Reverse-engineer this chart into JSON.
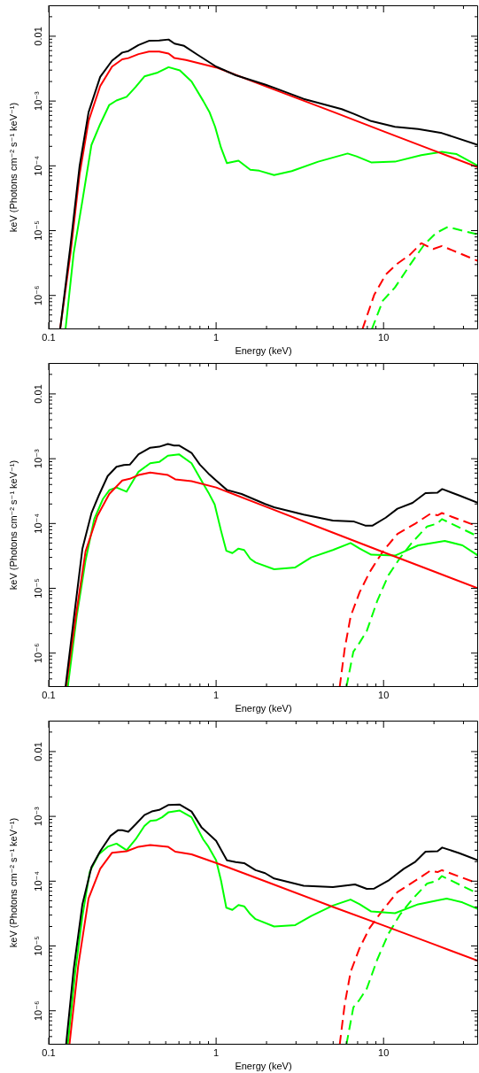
{
  "chart_data": [
    {
      "type": "line",
      "xlabel": "Energy (keV)",
      "ylabel": "keV (Photons cm⁻² s⁻¹ keV⁻¹)",
      "log": "xy",
      "marker": "none",
      "xlim": [
        0.1,
        36.7
      ],
      "ylim": [
        3e-07,
        0.03
      ],
      "xticks": [
        0.1,
        {
          "value": 0.2,
          "label": null
        },
        {
          "value": 0.3,
          "label": null
        },
        {
          "value": 0.4,
          "label": null
        },
        {
          "value": 0.5,
          "label": null
        },
        {
          "value": 0.6,
          "label": null
        },
        {
          "value": 0.7,
          "label": null
        },
        {
          "value": 0.8,
          "label": null
        },
        {
          "value": 0.9,
          "label": null
        },
        1,
        {
          "value": 2,
          "label": null
        },
        {
          "value": 3,
          "label": null
        },
        {
          "value": 4,
          "label": null
        },
        {
          "value": 5,
          "label": null
        },
        {
          "value": 6,
          "label": null
        },
        {
          "value": 7,
          "label": null
        },
        {
          "value": 8,
          "label": null
        },
        {
          "value": 9,
          "label": null
        },
        10,
        {
          "value": 20,
          "label": null
        },
        {
          "value": 30,
          "label": null
        }
      ],
      "yticks": [
        {
          "value": 4e-07,
          "label": null
        },
        {
          "value": 5e-07,
          "label": null
        },
        {
          "value": 6e-07,
          "label": null
        },
        {
          "value": 7e-07,
          "label": null
        },
        {
          "value": 8e-07,
          "label": null
        },
        {
          "value": 9e-07,
          "label": null
        },
        {
          "value": 1e-06,
          "label": "10⁻⁶"
        },
        {
          "value": 2e-06,
          "label": null
        },
        {
          "value": 3e-06,
          "label": null
        },
        {
          "value": 4e-06,
          "label": null
        },
        {
          "value": 5e-06,
          "label": null
        },
        {
          "value": 6e-06,
          "label": null
        },
        {
          "value": 7e-06,
          "label": null
        },
        {
          "value": 8e-06,
          "label": null
        },
        {
          "value": 9e-06,
          "label": null
        },
        {
          "value": 1e-05,
          "label": "10⁻⁵"
        },
        {
          "value": 2e-05,
          "label": null
        },
        {
          "value": 3e-05,
          "label": null
        },
        {
          "value": 4e-05,
          "label": null
        },
        {
          "value": 5e-05,
          "label": null
        },
        {
          "value": 6e-05,
          "label": null
        },
        {
          "value": 7e-05,
          "label": null
        },
        {
          "value": 8e-05,
          "label": null
        },
        {
          "value": 9e-05,
          "label": null
        },
        {
          "value": 0.0001,
          "label": "10⁻⁴"
        },
        {
          "value": 0.0002,
          "label": null
        },
        {
          "value": 0.0003,
          "label": null
        },
        {
          "value": 0.0004,
          "label": null
        },
        {
          "value": 0.0005,
          "label": null
        },
        {
          "value": 0.0006,
          "label": null
        },
        {
          "value": 0.0007,
          "label": null
        },
        {
          "value": 0.0008,
          "label": null
        },
        {
          "value": 0.0009,
          "label": null
        },
        {
          "value": 0.001,
          "label": "10⁻³"
        },
        {
          "value": 0.002,
          "label": null
        },
        {
          "value": 0.003,
          "label": null
        },
        {
          "value": 0.004,
          "label": null
        },
        {
          "value": 0.005,
          "label": null
        },
        {
          "value": 0.006,
          "label": null
        },
        {
          "value": 0.007,
          "label": null
        },
        {
          "value": 0.008,
          "label": null
        },
        {
          "value": 0.009,
          "label": null
        },
        {
          "value": 0.01,
          "label": "0.01"
        },
        {
          "value": 0.02,
          "label": null
        }
      ],
      "series": [
        {
          "color": "#000000",
          "line_style": "solid",
          "x": [
            0.117,
            0.135,
            0.153,
            0.173,
            0.203,
            0.239,
            0.275,
            0.299,
            0.344,
            0.397,
            0.457,
            0.52,
            0.564,
            0.644,
            0.773,
            1.0,
            1.31,
            1.96,
            2.22,
            3.33,
            5.62,
            6.6,
            8.44,
            11.7,
            16.1,
            22.3,
            36.7
          ],
          "values": [
            3e-07,
            6e-06,
            0.0001,
            0.00067,
            0.00236,
            0.0042,
            0.0056,
            0.0059,
            0.0073,
            0.0085,
            0.0086,
            0.0089,
            0.0077,
            0.0071,
            0.0052,
            0.0034,
            0.0025,
            0.0018,
            0.0016,
            0.00108,
            0.00075,
            0.00064,
            0.00049,
            0.0004,
            0.00037,
            0.00032,
            0.00021
          ]
        },
        {
          "color": "#ff0000",
          "line_style": "solid",
          "x": [
            0.117,
            0.135,
            0.153,
            0.173,
            0.203,
            0.239,
            0.275,
            0.299,
            0.344,
            0.397,
            0.457,
            0.52,
            0.564,
            0.66,
            1.0,
            2,
            5,
            10,
            20,
            36.7
          ],
          "values": [
            3e-07,
            4.5e-06,
            7.5e-05,
            0.00049,
            0.0017,
            0.0034,
            0.0044,
            0.0046,
            0.0053,
            0.0058,
            0.0058,
            0.0054,
            0.0046,
            0.0043,
            0.0033,
            0.00167,
            0.00068,
            0.00034,
            0.000172,
            9.5e-05
          ]
        },
        {
          "color": "#00ff00",
          "line_style": "solid",
          "x": [
            0.126,
            0.141,
            0.159,
            0.18,
            0.203,
            0.23,
            0.254,
            0.292,
            0.33,
            0.373,
            0.448,
            0.52,
            0.607,
            0.713,
            0.838,
            0.916,
            0.986,
            1.07,
            1.16,
            1.36,
            1.6,
            1.81,
            2.22,
            2.83,
            4.07,
            6.1,
            6.9,
            8.43,
            11.7,
            16.8,
            22.3,
            27.3,
            36.7
          ],
          "values": [
            3e-07,
            4.5e-06,
            2.9e-05,
            0.00021,
            0.00044,
            0.00087,
            0.00102,
            0.00116,
            0.00164,
            0.0024,
            0.00275,
            0.00333,
            0.00297,
            0.002,
            0.001,
            0.00066,
            0.0004,
            0.00019,
            0.00011,
            0.00012,
            8.7e-05,
            8.4e-05,
            7.2e-05,
            8.3e-05,
            0.000116,
            0.000155,
            0.00014,
            0.000113,
            0.000116,
            0.000146,
            0.000164,
            0.000152,
            0.0001
          ]
        },
        {
          "color": "#ff0000",
          "line_style": "dashed",
          "x": [
            7.47,
            8.79,
            10.3,
            12.1,
            14.3,
            16.8,
            19.8,
            22.3,
            36.7
          ],
          "values": [
            3e-07,
            1.02e-06,
            2.1e-06,
            3.1e-06,
            4.2e-06,
            6.4e-06,
            5.2e-06,
            5.8e-06,
            3.4e-06
          ]
        },
        {
          "color": "#00ff00",
          "line_style": "dashed",
          "x": [
            8.5,
            9.9,
            11.7,
            14.3,
            17.5,
            20.6,
            24.2,
            36.7
          ],
          "values": [
            3e-07,
            8.3e-07,
            1.33e-06,
            2.9e-06,
            6.1e-06,
            9.2e-06,
            1.14e-05,
            8.7e-06
          ]
        }
      ]
    },
    {
      "type": "line",
      "xlabel": "Energy (keV)",
      "ylabel": "keV (Photons cm⁻² s⁻¹ keV⁻¹)",
      "log": "xy",
      "marker": "none",
      "xlim": [
        0.1,
        36.7
      ],
      "ylim": [
        3e-07,
        0.03
      ],
      "xticks": [
        0.1,
        {
          "value": 0.2,
          "label": null
        },
        {
          "value": 0.3,
          "label": null
        },
        {
          "value": 0.4,
          "label": null
        },
        {
          "value": 0.5,
          "label": null
        },
        {
          "value": 0.6,
          "label": null
        },
        {
          "value": 0.7,
          "label": null
        },
        {
          "value": 0.8,
          "label": null
        },
        {
          "value": 0.9,
          "label": null
        },
        1,
        {
          "value": 2,
          "label": null
        },
        {
          "value": 3,
          "label": null
        },
        {
          "value": 4,
          "label": null
        },
        {
          "value": 5,
          "label": null
        },
        {
          "value": 6,
          "label": null
        },
        {
          "value": 7,
          "label": null
        },
        {
          "value": 8,
          "label": null
        },
        {
          "value": 9,
          "label": null
        },
        10,
        {
          "value": 20,
          "label": null
        },
        {
          "value": 30,
          "label": null
        }
      ],
      "yticks": [
        {
          "value": 4e-07,
          "label": null
        },
        {
          "value": 5e-07,
          "label": null
        },
        {
          "value": 6e-07,
          "label": null
        },
        {
          "value": 7e-07,
          "label": null
        },
        {
          "value": 8e-07,
          "label": null
        },
        {
          "value": 9e-07,
          "label": null
        },
        {
          "value": 1e-06,
          "label": "10⁻⁶"
        },
        {
          "value": 2e-06,
          "label": null
        },
        {
          "value": 3e-06,
          "label": null
        },
        {
          "value": 4e-06,
          "label": null
        },
        {
          "value": 5e-06,
          "label": null
        },
        {
          "value": 6e-06,
          "label": null
        },
        {
          "value": 7e-06,
          "label": null
        },
        {
          "value": 8e-06,
          "label": null
        },
        {
          "value": 9e-06,
          "label": null
        },
        {
          "value": 1e-05,
          "label": "10⁻⁵"
        },
        {
          "value": 2e-05,
          "label": null
        },
        {
          "value": 3e-05,
          "label": null
        },
        {
          "value": 4e-05,
          "label": null
        },
        {
          "value": 5e-05,
          "label": null
        },
        {
          "value": 6e-05,
          "label": null
        },
        {
          "value": 7e-05,
          "label": null
        },
        {
          "value": 8e-05,
          "label": null
        },
        {
          "value": 9e-05,
          "label": null
        },
        {
          "value": 0.0001,
          "label": "10⁻⁴"
        },
        {
          "value": 0.0002,
          "label": null
        },
        {
          "value": 0.0003,
          "label": null
        },
        {
          "value": 0.0004,
          "label": null
        },
        {
          "value": 0.0005,
          "label": null
        },
        {
          "value": 0.0006,
          "label": null
        },
        {
          "value": 0.0007,
          "label": null
        },
        {
          "value": 0.0008,
          "label": null
        },
        {
          "value": 0.0009,
          "label": null
        },
        {
          "value": 0.001,
          "label": "10⁻³"
        },
        {
          "value": 0.002,
          "label": null
        },
        {
          "value": 0.003,
          "label": null
        },
        {
          "value": 0.004,
          "label": null
        },
        {
          "value": 0.005,
          "label": null
        },
        {
          "value": 0.006,
          "label": null
        },
        {
          "value": 0.007,
          "label": null
        },
        {
          "value": 0.008,
          "label": null
        },
        {
          "value": 0.009,
          "label": null
        },
        {
          "value": 0.01,
          "label": "0.01"
        },
        {
          "value": 0.02,
          "label": null
        }
      ],
      "series": [
        {
          "color": "#000000",
          "line_style": "solid",
          "x": [
            0.126,
            0.141,
            0.159,
            0.18,
            0.199,
            0.225,
            0.254,
            0.281,
            0.305,
            0.344,
            0.404,
            0.457,
            0.515,
            0.56,
            0.6,
            0.713,
            0.8,
            0.9,
            1.0,
            1.16,
            1.42,
            1.96,
            2.22,
            3.33,
            4.98,
            6.6,
            7.77,
            8.6,
            10.3,
            12.1,
            14.9,
            17.8,
            21.0,
            22.4,
            28.4,
            36.7
          ],
          "values": [
            3e-07,
            3.3e-06,
            4.1e-05,
            0.000144,
            0.00027,
            0.00054,
            0.00075,
            0.0008,
            0.00081,
            0.00117,
            0.00148,
            0.00153,
            0.00169,
            0.0016,
            0.0016,
            0.00123,
            0.00081,
            0.00059,
            0.00046,
            0.00033,
            0.000285,
            0.0002,
            0.000178,
            0.000137,
            0.000111,
            0.000108,
            9.3e-05,
            9.3e-05,
            0.000123,
            0.000169,
            0.000208,
            0.000294,
            0.0003,
            0.00034,
            0.00027,
            0.000208
          ]
        },
        {
          "color": "#ff0000",
          "line_style": "solid",
          "x": [
            0.127,
            0.147,
            0.166,
            0.195,
            0.23,
            0.275,
            0.305,
            0.344,
            0.404,
            0.515,
            0.57,
            0.713,
            1.0,
            2,
            5,
            10,
            20,
            36.7
          ],
          "values": [
            3e-07,
            4.6e-06,
            3.7e-05,
            0.00013,
            0.000285,
            0.00046,
            0.00049,
            0.00056,
            0.00061,
            0.00056,
            0.00048,
            0.00045,
            0.00036,
            0.00018,
            7.2e-05,
            3.6e-05,
            1.82e-05,
            1e-05
          ]
        },
        {
          "color": "#00ff00",
          "line_style": "solid",
          "x": [
            0.13,
            0.147,
            0.166,
            0.187,
            0.211,
            0.231,
            0.254,
            0.292,
            0.344,
            0.404,
            0.457,
            0.515,
            0.6,
            0.713,
            0.838,
            0.9,
            0.98,
            1.07,
            1.15,
            1.25,
            1.36,
            1.47,
            1.6,
            1.72,
            2.22,
            2.97,
            3.7,
            4.98,
            6.35,
            7.2,
            8.44,
            11.7,
            16.1,
            23.2,
            29.6,
            36.7
          ],
          "values": [
            3e-07,
            3.7e-06,
            2.7e-05,
            0.000117,
            0.00024,
            0.00033,
            0.00036,
            0.00031,
            0.00063,
            0.00085,
            0.00089,
            0.00111,
            0.00117,
            0.00085,
            0.00041,
            0.0003,
            0.000197,
            7.7e-05,
            3.8e-05,
            3.5e-05,
            4.1e-05,
            3.9e-05,
            2.85e-05,
            2.5e-05,
            1.97e-05,
            2.1e-05,
            3e-05,
            3.9e-05,
            5e-05,
            4.1e-05,
            3.3e-05,
            3.2e-05,
            4.6e-05,
            5.4e-05,
            4.6e-05,
            3.2e-05
          ]
        },
        {
          "color": "#ff0000",
          "line_style": "dashed",
          "x": [
            5.47,
            5.86,
            6.36,
            7.18,
            8.26,
            9.9,
            12.1,
            15.5,
            19.0,
            21,
            22.3,
            36.7
          ],
          "values": [
            3e-07,
            1.17e-06,
            3.7e-06,
            8.6e-06,
            1.78e-05,
            3.7e-05,
            6.9e-05,
            0.0001,
            0.000141,
            0.000134,
            0.000145,
            9e-05
          ]
        },
        {
          "color": "#00ff00",
          "line_style": "dashed",
          "x": [
            6.0,
            6.6,
            7.18,
            7.94,
            9.15,
            10.7,
            12.6,
            14.8,
            18.2,
            21,
            22.3,
            36.7
          ],
          "values": [
            3e-07,
            1.05e-06,
            1.44e-06,
            2.2e-06,
            6.3e-06,
            1.6e-05,
            3e-05,
            5.1e-05,
            9e-05,
            0.0001,
            0.000117,
            6.3e-05
          ]
        }
      ]
    },
    {
      "type": "line",
      "xlabel": "Energy (keV)",
      "ylabel": "keV (Photons cm⁻² s⁻¹ keV⁻¹)",
      "log": "xy",
      "marker": "none",
      "xlim": [
        0.1,
        36.7
      ],
      "ylim": [
        3e-07,
        0.03
      ],
      "xticks": [
        0.1,
        {
          "value": 0.2,
          "label": null
        },
        {
          "value": 0.3,
          "label": null
        },
        {
          "value": 0.4,
          "label": null
        },
        {
          "value": 0.5,
          "label": null
        },
        {
          "value": 0.6,
          "label": null
        },
        {
          "value": 0.7,
          "label": null
        },
        {
          "value": 0.8,
          "label": null
        },
        {
          "value": 0.9,
          "label": null
        },
        1,
        {
          "value": 2,
          "label": null
        },
        {
          "value": 3,
          "label": null
        },
        {
          "value": 4,
          "label": null
        },
        {
          "value": 5,
          "label": null
        },
        {
          "value": 6,
          "label": null
        },
        {
          "value": 7,
          "label": null
        },
        {
          "value": 8,
          "label": null
        },
        {
          "value": 9,
          "label": null
        },
        10,
        {
          "value": 20,
          "label": null
        },
        {
          "value": 30,
          "label": null
        }
      ],
      "yticks": [
        {
          "value": 4e-07,
          "label": null
        },
        {
          "value": 5e-07,
          "label": null
        },
        {
          "value": 6e-07,
          "label": null
        },
        {
          "value": 7e-07,
          "label": null
        },
        {
          "value": 8e-07,
          "label": null
        },
        {
          "value": 9e-07,
          "label": null
        },
        {
          "value": 1e-06,
          "label": "10⁻⁶"
        },
        {
          "value": 2e-06,
          "label": null
        },
        {
          "value": 3e-06,
          "label": null
        },
        {
          "value": 4e-06,
          "label": null
        },
        {
          "value": 5e-06,
          "label": null
        },
        {
          "value": 6e-06,
          "label": null
        },
        {
          "value": 7e-06,
          "label": null
        },
        {
          "value": 8e-06,
          "label": null
        },
        {
          "value": 9e-06,
          "label": null
        },
        {
          "value": 1e-05,
          "label": "10⁻⁵"
        },
        {
          "value": 2e-05,
          "label": null
        },
        {
          "value": 3e-05,
          "label": null
        },
        {
          "value": 4e-05,
          "label": null
        },
        {
          "value": 5e-05,
          "label": null
        },
        {
          "value": 6e-05,
          "label": null
        },
        {
          "value": 7e-05,
          "label": null
        },
        {
          "value": 8e-05,
          "label": null
        },
        {
          "value": 9e-05,
          "label": null
        },
        {
          "value": 0.0001,
          "label": "10⁻⁴"
        },
        {
          "value": 0.0002,
          "label": null
        },
        {
          "value": 0.0003,
          "label": null
        },
        {
          "value": 0.0004,
          "label": null
        },
        {
          "value": 0.0005,
          "label": null
        },
        {
          "value": 0.0006,
          "label": null
        },
        {
          "value": 0.0007,
          "label": null
        },
        {
          "value": 0.0008,
          "label": null
        },
        {
          "value": 0.0009,
          "label": null
        },
        {
          "value": 0.001,
          "label": "10⁻³"
        },
        {
          "value": 0.002,
          "label": null
        },
        {
          "value": 0.003,
          "label": null
        },
        {
          "value": 0.004,
          "label": null
        },
        {
          "value": 0.005,
          "label": null
        },
        {
          "value": 0.006,
          "label": null
        },
        {
          "value": 0.007,
          "label": null
        },
        {
          "value": 0.008,
          "label": null
        },
        {
          "value": 0.009,
          "label": null
        },
        {
          "value": 0.01,
          "label": "0.01"
        },
        {
          "value": 0.02,
          "label": null
        }
      ],
      "series": [
        {
          "color": "#000000",
          "line_style": "solid",
          "x": [
            0.127,
            0.141,
            0.159,
            0.18,
            0.203,
            0.234,
            0.259,
            0.275,
            0.299,
            0.33,
            0.373,
            0.413,
            0.457,
            0.52,
            0.607,
            0.713,
            0.82,
            0.9,
            1.0,
            1.16,
            1.31,
            1.47,
            1.72,
            1.96,
            2.22,
            3.33,
            4.98,
            6.75,
            7.94,
            8.79,
            10.8,
            13.2,
            15.5,
            17.8,
            21,
            22.4,
            28.4,
            36.7
          ],
          "values": [
            3e-07,
            4.4e-06,
            4.4e-05,
            0.000164,
            0.00029,
            0.0005,
            0.00061,
            0.00061,
            0.00058,
            0.00075,
            0.00105,
            0.00119,
            0.00126,
            0.0015,
            0.00152,
            0.00119,
            0.00067,
            0.00054,
            0.00042,
            0.00021,
            0.000197,
            0.00019,
            0.000148,
            0.000133,
            0.00011,
            8.5e-05,
            8.1e-05,
            8.9e-05,
            7.6e-05,
            7.7e-05,
            0.000104,
            0.000155,
            0.0002,
            0.000285,
            0.00029,
            0.00033,
            0.00027,
            0.00021
          ]
        },
        {
          "color": "#ff0000",
          "line_style": "solid",
          "x": [
            0.133,
            0.15,
            0.173,
            0.203,
            0.239,
            0.292,
            0.344,
            0.404,
            0.515,
            0.57,
            0.713,
            1.0,
            2,
            5,
            10,
            20,
            36.7
          ],
          "values": [
            3e-07,
            4.9e-06,
            5.4e-05,
            0.000155,
            0.000275,
            0.00029,
            0.00034,
            0.00036,
            0.00034,
            0.000285,
            0.00026,
            0.000191,
            9.8e-05,
            4e-05,
            2.07e-05,
            1.06e-05,
            5.9e-06
          ]
        },
        {
          "color": "#00ff00",
          "line_style": "solid",
          "x": [
            0.13,
            0.144,
            0.159,
            0.176,
            0.199,
            0.225,
            0.254,
            0.292,
            0.33,
            0.373,
            0.404,
            0.438,
            0.476,
            0.52,
            0.607,
            0.713,
            0.838,
            0.9,
            1.0,
            1.07,
            1.15,
            1.25,
            1.36,
            1.47,
            1.6,
            1.72,
            2.22,
            2.97,
            3.7,
            4.98,
            6.35,
            7.2,
            8.44,
            11.7,
            16.1,
            23.8,
            29.6,
            36.7
          ],
          "values": [
            3e-07,
            4e-06,
            2.9e-05,
            0.00014,
            0.00026,
            0.00034,
            0.00038,
            0.0003,
            0.00044,
            0.00071,
            0.00085,
            0.00087,
            0.00097,
            0.00116,
            0.00123,
            0.00097,
            0.00044,
            0.00034,
            0.00021,
            0.000102,
            3.9e-05,
            3.6e-05,
            4.3e-05,
            4.1e-05,
            3.1e-05,
            2.6e-05,
            2e-05,
            2.1e-05,
            2.9e-05,
            4.2e-05,
            5.2e-05,
            4.4e-05,
            3.4e-05,
            3.2e-05,
            4.4e-05,
            5.4e-05,
            4.7e-05,
            3.7e-05
          ]
        },
        {
          "color": "#ff0000",
          "line_style": "dashed",
          "x": [
            5.47,
            5.86,
            6.36,
            7.18,
            8.26,
            9.9,
            12.1,
            15.5,
            19.0,
            21,
            22.3,
            36.7
          ],
          "values": [
            3e-07,
            1.26e-06,
            4e-06,
            9.2e-06,
            1.9e-05,
            3.6e-05,
            6.8e-05,
            0.000102,
            0.000145,
            0.000138,
            0.000148,
            9.2e-05
          ]
        },
        {
          "color": "#00ff00",
          "line_style": "dashed",
          "x": [
            6.0,
            6.6,
            7.18,
            7.94,
            9.15,
            10.7,
            12.6,
            14.8,
            18.2,
            21,
            22.3,
            36.7
          ],
          "values": [
            3e-07,
            1.13e-06,
            1.48e-06,
            2.2e-06,
            6.1e-06,
            1.55e-05,
            3.1e-05,
            5.2e-05,
            9.2e-05,
            0.000102,
            0.00012,
            6.4e-05
          ]
        }
      ]
    }
  ]
}
